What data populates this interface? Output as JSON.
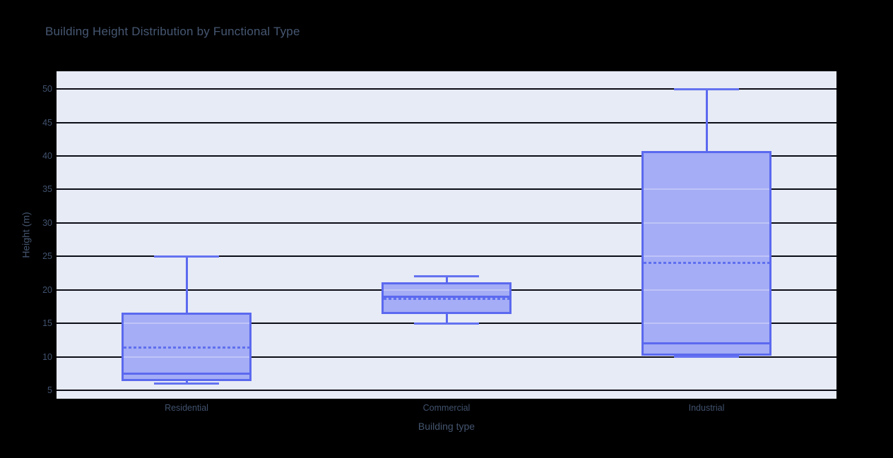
{
  "figure": {
    "title": "Building Height Distribution by Functional Type",
    "background_color": "#000000",
    "plot_background_color": "#e7ebf5",
    "gridline_color": "#0b0c15",
    "text_color": "#44556f"
  },
  "chart_data": {
    "type": "box",
    "title": "Building Height Distribution by Functional Type",
    "xlabel": "Building type",
    "ylabel": "Height (m)",
    "categories": [
      "Residential",
      "Commercial",
      "Industrial"
    ],
    "series": [
      {
        "name": "Residential",
        "min": 6,
        "q1": 6.5,
        "median": 7.5,
        "q3": 16.5,
        "max": 25,
        "mean": 11.4
      },
      {
        "name": "Commercial",
        "min": 15,
        "q1": 16.6,
        "median": 19,
        "q3": 21,
        "max": 22,
        "mean": 18.7
      },
      {
        "name": "Industrial",
        "min": 10,
        "q1": 10.3,
        "median": 12,
        "q3": 40.6,
        "max": 50,
        "mean": 24
      }
    ],
    "mean_line_style": "dashed",
    "median_line_style": "solid",
    "yticks": [
      5,
      10,
      15,
      20,
      25,
      30,
      35,
      40,
      45,
      50
    ],
    "ylim": [
      3.75,
      52.65
    ],
    "grid": true,
    "legend": "none",
    "colors": {
      "box_fill": "#a4adf5",
      "box_border": "#5b69ef",
      "mean_line": "#6070ef"
    }
  }
}
